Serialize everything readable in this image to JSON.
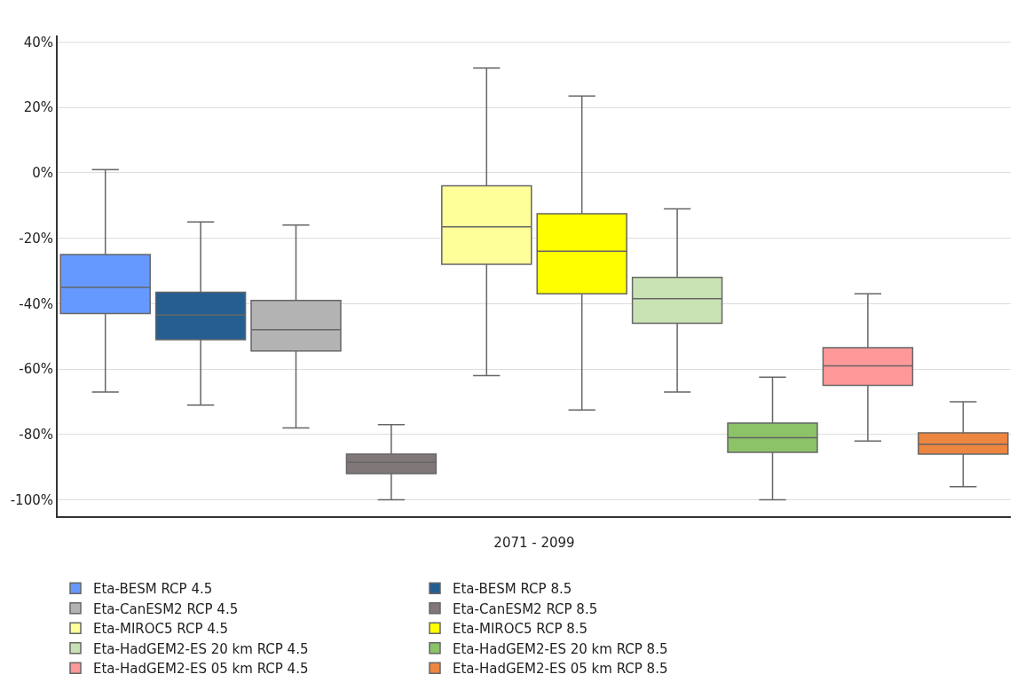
{
  "chart_data": {
    "type": "box",
    "categories": [
      "2071 - 2099"
    ],
    "ylim": [
      -105,
      42
    ],
    "yticks": [
      {
        "value": -100,
        "label": "-100%"
      },
      {
        "value": -80,
        "label": "-80%"
      },
      {
        "value": -60,
        "label": "-60%"
      },
      {
        "value": -40,
        "label": "-40%"
      },
      {
        "value": -20,
        "label": "-20%"
      },
      {
        "value": 0,
        "label": "0%"
      },
      {
        "value": 20,
        "label": "20%"
      },
      {
        "value": 40,
        "label": "40%"
      }
    ],
    "grid": "y",
    "legend": "bottom",
    "series": [
      {
        "name": "Eta-BESM RCP 4.5",
        "color": "#6699ff",
        "boxes": [
          {
            "low": -67,
            "q1": -43,
            "median": -35,
            "q3": -25,
            "high": 1
          }
        ]
      },
      {
        "name": "Eta-BESM RCP 8.5",
        "color": "#255e91",
        "boxes": [
          {
            "low": -71,
            "q1": -51,
            "median": -43.5,
            "q3": -36.5,
            "high": -15
          }
        ]
      },
      {
        "name": "Eta-CanESM2 RCP 4.5",
        "color": "#b3b3b3",
        "boxes": [
          {
            "low": -78,
            "q1": -54.5,
            "median": -48,
            "q3": -39,
            "high": -16
          }
        ]
      },
      {
        "name": "Eta-CanESM2 RCP 8.5",
        "color": "#807878",
        "boxes": [
          {
            "low": -100,
            "q1": -92,
            "median": -88.5,
            "q3": -86,
            "high": -77
          }
        ]
      },
      {
        "name": "Eta-MIROC5 RCP 4.5",
        "color": "#ffff99",
        "boxes": [
          {
            "low": -62,
            "q1": -28,
            "median": -16.5,
            "q3": -4,
            "high": 32
          }
        ]
      },
      {
        "name": "Eta-MIROC5 RCP 8.5",
        "color": "#ffff00",
        "boxes": [
          {
            "low": -72.5,
            "q1": -37,
            "median": -24,
            "q3": -12.5,
            "high": 23.5
          }
        ]
      },
      {
        "name": "Eta-HadGEM2-ES 20 km RCP 4.5",
        "color": "#c8e2b4",
        "boxes": [
          {
            "low": -67,
            "q1": -46,
            "median": -38.5,
            "q3": -32,
            "high": -11
          }
        ]
      },
      {
        "name": "Eta-HadGEM2-ES 20 km RCP 8.5",
        "color": "#8cc268",
        "boxes": [
          {
            "low": -100,
            "q1": -85.5,
            "median": -81,
            "q3": -76.5,
            "high": -62.5
          }
        ]
      },
      {
        "name": "Eta-HadGEM2-ES 05 km RCP 4.5",
        "color": "#ff9999",
        "boxes": [
          {
            "low": -82,
            "q1": -65,
            "median": -59,
            "q3": -53.5,
            "high": -37
          }
        ]
      },
      {
        "name": "Eta-HadGEM2-ES 05 km RCP 8.5",
        "color": "#ed8641",
        "boxes": [
          {
            "low": -96,
            "q1": -86,
            "median": -83,
            "q3": -79.5,
            "high": -70
          }
        ]
      }
    ]
  }
}
